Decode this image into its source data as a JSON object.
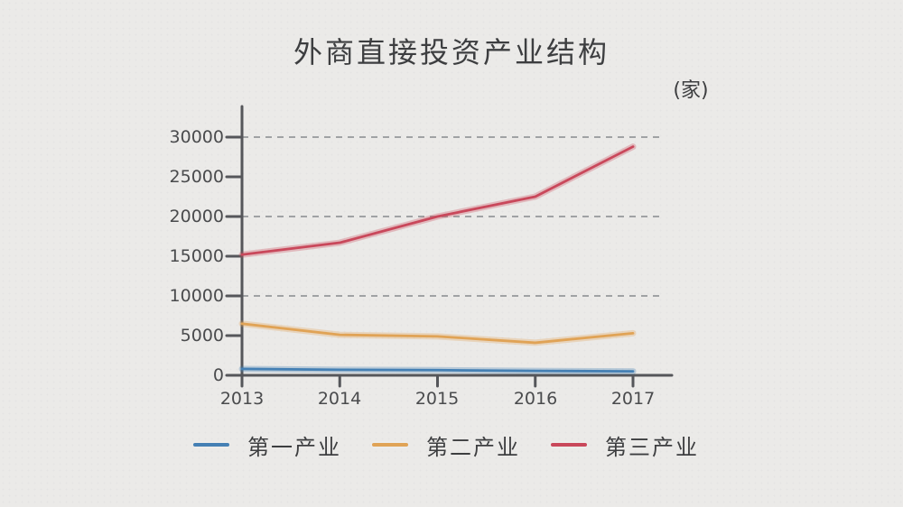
{
  "chart_data": {
    "type": "line",
    "title": "外商直接投资产业结构",
    "unit_label": "(家)",
    "x": [
      "2013",
      "2014",
      "2015",
      "2016",
      "2017"
    ],
    "series": [
      {
        "name": "第一产业",
        "color": "#4580b4",
        "values": [
          800,
          700,
          650,
          550,
          500
        ]
      },
      {
        "name": "第二产业",
        "color": "#e0a356",
        "values": [
          6500,
          5100,
          4900,
          4100,
          5300
        ]
      },
      {
        "name": "第三产业",
        "color": "#c9485b",
        "values": [
          15200,
          16700,
          20000,
          22500,
          28800
        ]
      }
    ],
    "xlabel": "",
    "ylabel": "",
    "ylim": [
      0,
      30000
    ],
    "yticks": [
      "0",
      "5000",
      "10000",
      "15000",
      "20000",
      "25000",
      "30000"
    ],
    "ytick_values": [
      0,
      5000,
      10000,
      15000,
      20000,
      25000,
      30000
    ],
    "grid_values": [
      10000,
      20000,
      30000
    ],
    "grid_style": "dashed",
    "legend_position": "bottom",
    "axis_color": "#55565a",
    "grid_color": "#96989a",
    "text_color": "#454648",
    "background_color": "#ebeae8"
  }
}
